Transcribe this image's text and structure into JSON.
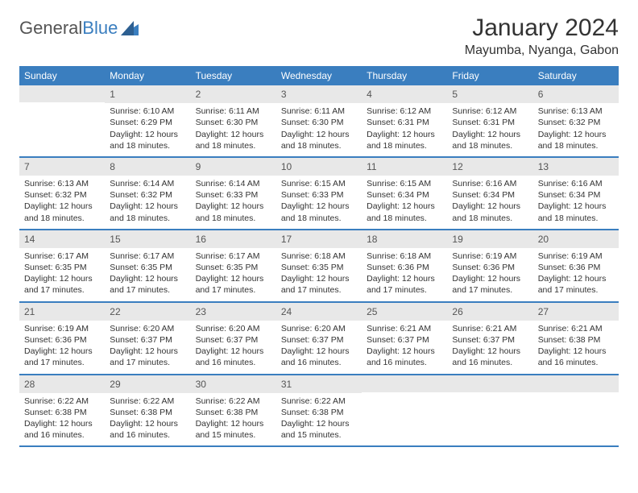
{
  "brand": {
    "part1": "General",
    "part2": "Blue"
  },
  "title": "January 2024",
  "location": "Mayumba, Nyanga, Gabon",
  "colors": {
    "header_bg": "#3a7ebf",
    "header_text": "#ffffff",
    "daynum_bg": "#e8e8e8",
    "body_text": "#333333",
    "border": "#3a7ebf",
    "page_bg": "#ffffff"
  },
  "weekdays": [
    "Sunday",
    "Monday",
    "Tuesday",
    "Wednesday",
    "Thursday",
    "Friday",
    "Saturday"
  ],
  "weeks": [
    [
      {
        "day": "",
        "sunrise": "",
        "sunset": "",
        "daylight1": "",
        "daylight2": ""
      },
      {
        "day": "1",
        "sunrise": "Sunrise: 6:10 AM",
        "sunset": "Sunset: 6:29 PM",
        "daylight1": "Daylight: 12 hours",
        "daylight2": "and 18 minutes."
      },
      {
        "day": "2",
        "sunrise": "Sunrise: 6:11 AM",
        "sunset": "Sunset: 6:30 PM",
        "daylight1": "Daylight: 12 hours",
        "daylight2": "and 18 minutes."
      },
      {
        "day": "3",
        "sunrise": "Sunrise: 6:11 AM",
        "sunset": "Sunset: 6:30 PM",
        "daylight1": "Daylight: 12 hours",
        "daylight2": "and 18 minutes."
      },
      {
        "day": "4",
        "sunrise": "Sunrise: 6:12 AM",
        "sunset": "Sunset: 6:31 PM",
        "daylight1": "Daylight: 12 hours",
        "daylight2": "and 18 minutes."
      },
      {
        "day": "5",
        "sunrise": "Sunrise: 6:12 AM",
        "sunset": "Sunset: 6:31 PM",
        "daylight1": "Daylight: 12 hours",
        "daylight2": "and 18 minutes."
      },
      {
        "day": "6",
        "sunrise": "Sunrise: 6:13 AM",
        "sunset": "Sunset: 6:32 PM",
        "daylight1": "Daylight: 12 hours",
        "daylight2": "and 18 minutes."
      }
    ],
    [
      {
        "day": "7",
        "sunrise": "Sunrise: 6:13 AM",
        "sunset": "Sunset: 6:32 PM",
        "daylight1": "Daylight: 12 hours",
        "daylight2": "and 18 minutes."
      },
      {
        "day": "8",
        "sunrise": "Sunrise: 6:14 AM",
        "sunset": "Sunset: 6:32 PM",
        "daylight1": "Daylight: 12 hours",
        "daylight2": "and 18 minutes."
      },
      {
        "day": "9",
        "sunrise": "Sunrise: 6:14 AM",
        "sunset": "Sunset: 6:33 PM",
        "daylight1": "Daylight: 12 hours",
        "daylight2": "and 18 minutes."
      },
      {
        "day": "10",
        "sunrise": "Sunrise: 6:15 AM",
        "sunset": "Sunset: 6:33 PM",
        "daylight1": "Daylight: 12 hours",
        "daylight2": "and 18 minutes."
      },
      {
        "day": "11",
        "sunrise": "Sunrise: 6:15 AM",
        "sunset": "Sunset: 6:34 PM",
        "daylight1": "Daylight: 12 hours",
        "daylight2": "and 18 minutes."
      },
      {
        "day": "12",
        "sunrise": "Sunrise: 6:16 AM",
        "sunset": "Sunset: 6:34 PM",
        "daylight1": "Daylight: 12 hours",
        "daylight2": "and 18 minutes."
      },
      {
        "day": "13",
        "sunrise": "Sunrise: 6:16 AM",
        "sunset": "Sunset: 6:34 PM",
        "daylight1": "Daylight: 12 hours",
        "daylight2": "and 18 minutes."
      }
    ],
    [
      {
        "day": "14",
        "sunrise": "Sunrise: 6:17 AM",
        "sunset": "Sunset: 6:35 PM",
        "daylight1": "Daylight: 12 hours",
        "daylight2": "and 17 minutes."
      },
      {
        "day": "15",
        "sunrise": "Sunrise: 6:17 AM",
        "sunset": "Sunset: 6:35 PM",
        "daylight1": "Daylight: 12 hours",
        "daylight2": "and 17 minutes."
      },
      {
        "day": "16",
        "sunrise": "Sunrise: 6:17 AM",
        "sunset": "Sunset: 6:35 PM",
        "daylight1": "Daylight: 12 hours",
        "daylight2": "and 17 minutes."
      },
      {
        "day": "17",
        "sunrise": "Sunrise: 6:18 AM",
        "sunset": "Sunset: 6:35 PM",
        "daylight1": "Daylight: 12 hours",
        "daylight2": "and 17 minutes."
      },
      {
        "day": "18",
        "sunrise": "Sunrise: 6:18 AM",
        "sunset": "Sunset: 6:36 PM",
        "daylight1": "Daylight: 12 hours",
        "daylight2": "and 17 minutes."
      },
      {
        "day": "19",
        "sunrise": "Sunrise: 6:19 AM",
        "sunset": "Sunset: 6:36 PM",
        "daylight1": "Daylight: 12 hours",
        "daylight2": "and 17 minutes."
      },
      {
        "day": "20",
        "sunrise": "Sunrise: 6:19 AM",
        "sunset": "Sunset: 6:36 PM",
        "daylight1": "Daylight: 12 hours",
        "daylight2": "and 17 minutes."
      }
    ],
    [
      {
        "day": "21",
        "sunrise": "Sunrise: 6:19 AM",
        "sunset": "Sunset: 6:36 PM",
        "daylight1": "Daylight: 12 hours",
        "daylight2": "and 17 minutes."
      },
      {
        "day": "22",
        "sunrise": "Sunrise: 6:20 AM",
        "sunset": "Sunset: 6:37 PM",
        "daylight1": "Daylight: 12 hours",
        "daylight2": "and 17 minutes."
      },
      {
        "day": "23",
        "sunrise": "Sunrise: 6:20 AM",
        "sunset": "Sunset: 6:37 PM",
        "daylight1": "Daylight: 12 hours",
        "daylight2": "and 16 minutes."
      },
      {
        "day": "24",
        "sunrise": "Sunrise: 6:20 AM",
        "sunset": "Sunset: 6:37 PM",
        "daylight1": "Daylight: 12 hours",
        "daylight2": "and 16 minutes."
      },
      {
        "day": "25",
        "sunrise": "Sunrise: 6:21 AM",
        "sunset": "Sunset: 6:37 PM",
        "daylight1": "Daylight: 12 hours",
        "daylight2": "and 16 minutes."
      },
      {
        "day": "26",
        "sunrise": "Sunrise: 6:21 AM",
        "sunset": "Sunset: 6:37 PM",
        "daylight1": "Daylight: 12 hours",
        "daylight2": "and 16 minutes."
      },
      {
        "day": "27",
        "sunrise": "Sunrise: 6:21 AM",
        "sunset": "Sunset: 6:38 PM",
        "daylight1": "Daylight: 12 hours",
        "daylight2": "and 16 minutes."
      }
    ],
    [
      {
        "day": "28",
        "sunrise": "Sunrise: 6:22 AM",
        "sunset": "Sunset: 6:38 PM",
        "daylight1": "Daylight: 12 hours",
        "daylight2": "and 16 minutes."
      },
      {
        "day": "29",
        "sunrise": "Sunrise: 6:22 AM",
        "sunset": "Sunset: 6:38 PM",
        "daylight1": "Daylight: 12 hours",
        "daylight2": "and 16 minutes."
      },
      {
        "day": "30",
        "sunrise": "Sunrise: 6:22 AM",
        "sunset": "Sunset: 6:38 PM",
        "daylight1": "Daylight: 12 hours",
        "daylight2": "and 15 minutes."
      },
      {
        "day": "31",
        "sunrise": "Sunrise: 6:22 AM",
        "sunset": "Sunset: 6:38 PM",
        "daylight1": "Daylight: 12 hours",
        "daylight2": "and 15 minutes."
      },
      {
        "day": "",
        "sunrise": "",
        "sunset": "",
        "daylight1": "",
        "daylight2": ""
      },
      {
        "day": "",
        "sunrise": "",
        "sunset": "",
        "daylight1": "",
        "daylight2": ""
      },
      {
        "day": "",
        "sunrise": "",
        "sunset": "",
        "daylight1": "",
        "daylight2": ""
      }
    ]
  ]
}
